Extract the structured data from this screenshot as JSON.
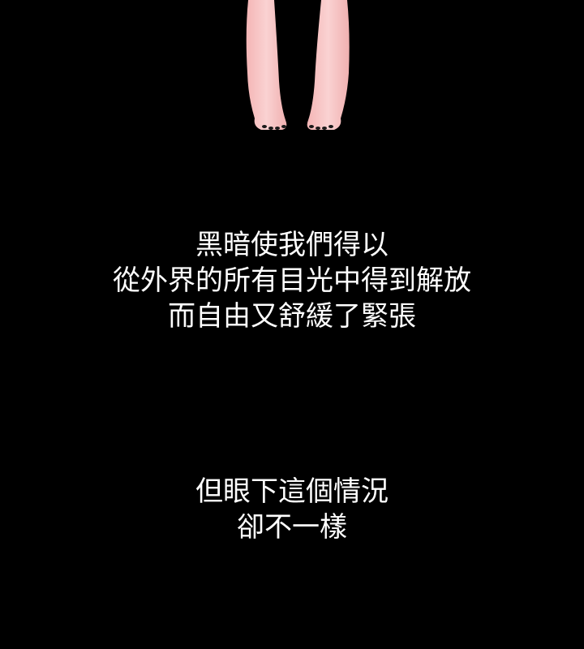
{
  "colors": {
    "background": "#000000",
    "text": "#ffffff",
    "skin": "#f6c6c6",
    "skin_shadow": "#e9a7a7"
  },
  "art": {
    "icon": "legs-feet-illustration"
  },
  "caption_1": {
    "lines": [
      "黑暗使我們得以",
      "從外界的所有目光中得到解放",
      "而自由又舒緩了緊張"
    ]
  },
  "caption_2": {
    "lines": [
      "但眼下這個情況",
      "卻不一樣"
    ]
  }
}
